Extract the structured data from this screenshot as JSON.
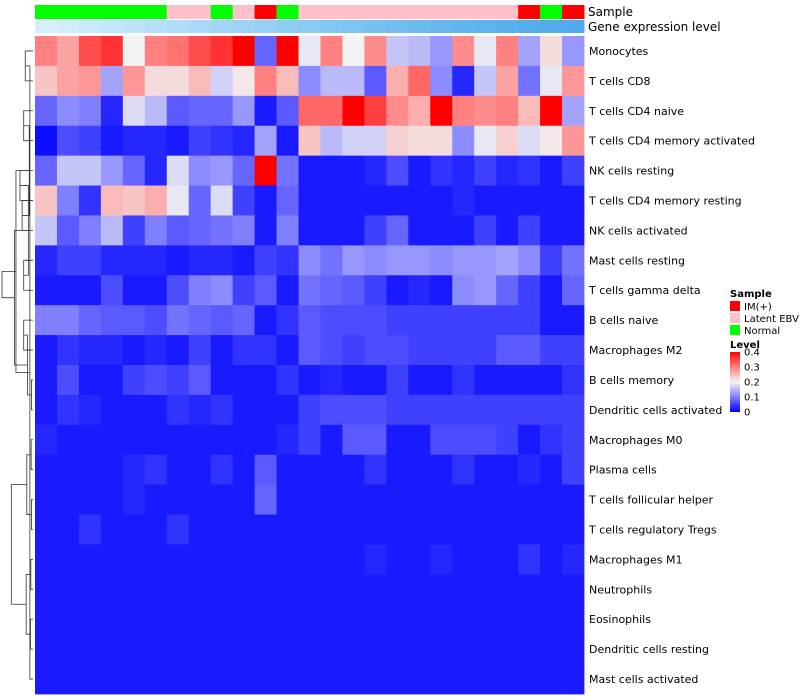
{
  "chart_data": {
    "type": "heatmap",
    "annotations": {
      "sample_track_label": "Sample",
      "expression_track_label": "Gene expression level",
      "sample": [
        "Normal",
        "Normal",
        "Normal",
        "Normal",
        "Normal",
        "Normal",
        "Latent EBV",
        "Latent EBV",
        "Normal",
        "Latent EBV",
        "IM(+)",
        "Normal",
        "Latent EBV",
        "Latent EBV",
        "Latent EBV",
        "Latent EBV",
        "Latent EBV",
        "Latent EBV",
        "Latent EBV",
        "Latent EBV",
        "Latent EBV",
        "Latent EBV",
        "IM(+)",
        "Normal",
        "IM(+)"
      ],
      "expression_gradient": [
        "#d6efff",
        "#d0ecfd",
        "#c9e9fc",
        "#c3e6fb",
        "#bde3fa",
        "#b6e0f9",
        "#b0ddf8",
        "#aad9f7",
        "#a3d6f6",
        "#9dd3f5",
        "#97d0f4",
        "#90cdf3",
        "#8acaf3",
        "#84c7f2",
        "#7dc4f1",
        "#77c1f0",
        "#71bef0",
        "#6bbbef",
        "#66b8ee",
        "#61b5ee",
        "#5cb3ed",
        "#58b0ed",
        "#55aeec",
        "#52acec",
        "#50abec"
      ]
    },
    "rows": [
      "Monocytes",
      "T cells CD8",
      "T cells CD4 naive",
      "T cells CD4 memory activated",
      "NK cells resting",
      "T cells CD4 memory resting",
      "NK cells activated",
      "Mast cells resting",
      "T cells gamma delta",
      "B cells naive",
      "Macrophages M2",
      "B cells memory",
      "Dendritic cells activated",
      "Macrophages M0",
      "Plasma cells",
      "T cells follicular helper",
      "T cells regulatory  Tregs",
      "Macrophages M1",
      "Neutrophils",
      "Eosinophils",
      "Dendritic cells resting",
      "Mast cells activated"
    ],
    "values": [
      [
        0.3,
        0.27,
        0.34,
        0.36,
        0.2,
        0.3,
        0.31,
        0.34,
        0.36,
        0.4,
        0.08,
        0.4,
        0.19,
        0.3,
        0.2,
        0.29,
        0.16,
        0.15,
        0.12,
        0.29,
        0.19,
        0.3,
        0.13,
        0.22,
        0.12
      ],
      [
        0.24,
        0.27,
        0.28,
        0.13,
        0.28,
        0.22,
        0.22,
        0.25,
        0.17,
        0.21,
        0.3,
        0.25,
        0.11,
        0.15,
        0.15,
        0.07,
        0.26,
        0.32,
        0.11,
        0.03,
        0.16,
        0.27,
        0.09,
        0.19,
        0.28
      ],
      [
        0.08,
        0.11,
        0.1,
        0.03,
        0.18,
        0.15,
        0.07,
        0.08,
        0.08,
        0.12,
        0.02,
        0.07,
        0.32,
        0.32,
        0.4,
        0.35,
        0.29,
        0.26,
        0.4,
        0.3,
        0.29,
        0.3,
        0.25,
        0.4,
        0.13
      ],
      [
        0.01,
        0.06,
        0.05,
        0.02,
        0.03,
        0.03,
        0.02,
        0.05,
        0.04,
        0.03,
        0.13,
        0.02,
        0.24,
        0.15,
        0.17,
        0.17,
        0.23,
        0.22,
        0.22,
        0.11,
        0.19,
        0.23,
        0.18,
        0.21,
        0.28
      ],
      [
        0.08,
        0.16,
        0.16,
        0.12,
        0.08,
        0.03,
        0.18,
        0.11,
        0.12,
        0.08,
        0.4,
        0.09,
        0.02,
        0.02,
        0.02,
        0.03,
        0.06,
        0.02,
        0.04,
        0.03,
        0.05,
        0.03,
        0.04,
        0.02,
        0.05
      ],
      [
        0.24,
        0.1,
        0.04,
        0.25,
        0.24,
        0.26,
        0.19,
        0.08,
        0.18,
        0.05,
        0.02,
        0.08,
        0.02,
        0.02,
        0.02,
        0.02,
        0.02,
        0.02,
        0.02,
        0.03,
        0.02,
        0.02,
        0.02,
        0.02,
        0.02
      ],
      [
        0.16,
        0.07,
        0.1,
        0.15,
        0.05,
        0.1,
        0.07,
        0.08,
        0.09,
        0.1,
        0.02,
        0.1,
        0.02,
        0.02,
        0.02,
        0.05,
        0.08,
        0.02,
        0.02,
        0.02,
        0.05,
        0.02,
        0.05,
        0.02,
        0.02
      ],
      [
        0.03,
        0.05,
        0.05,
        0.03,
        0.03,
        0.03,
        0.02,
        0.03,
        0.03,
        0.02,
        0.05,
        0.04,
        0.11,
        0.09,
        0.12,
        0.11,
        0.12,
        0.12,
        0.11,
        0.12,
        0.12,
        0.13,
        0.11,
        0.05,
        0.09
      ],
      [
        0.02,
        0.02,
        0.02,
        0.06,
        0.02,
        0.02,
        0.06,
        0.1,
        0.11,
        0.05,
        0.07,
        0.02,
        0.09,
        0.08,
        0.07,
        0.05,
        0.02,
        0.03,
        0.02,
        0.11,
        0.12,
        0.08,
        0.05,
        0.02,
        0.08
      ],
      [
        0.1,
        0.1,
        0.08,
        0.07,
        0.07,
        0.06,
        0.09,
        0.08,
        0.07,
        0.08,
        0.02,
        0.04,
        0.07,
        0.06,
        0.06,
        0.06,
        0.05,
        0.05,
        0.05,
        0.05,
        0.05,
        0.05,
        0.05,
        0.02,
        0.02
      ],
      [
        0.02,
        0.04,
        0.03,
        0.03,
        0.02,
        0.03,
        0.02,
        0.05,
        0.02,
        0.04,
        0.04,
        0.02,
        0.07,
        0.06,
        0.05,
        0.06,
        0.06,
        0.05,
        0.05,
        0.05,
        0.05,
        0.07,
        0.07,
        0.05,
        0.05
      ],
      [
        0.02,
        0.06,
        0.02,
        0.02,
        0.05,
        0.06,
        0.05,
        0.07,
        0.02,
        0.02,
        0.02,
        0.04,
        0.02,
        0.03,
        0.02,
        0.02,
        0.05,
        0.02,
        0.02,
        0.04,
        0.02,
        0.02,
        0.02,
        0.02,
        0.04
      ],
      [
        0.02,
        0.04,
        0.03,
        0.02,
        0.02,
        0.02,
        0.04,
        0.03,
        0.04,
        0.02,
        0.02,
        0.02,
        0.05,
        0.06,
        0.06,
        0.06,
        0.05,
        0.05,
        0.05,
        0.05,
        0.05,
        0.05,
        0.05,
        0.05,
        0.05
      ],
      [
        0.03,
        0.02,
        0.02,
        0.02,
        0.02,
        0.02,
        0.02,
        0.02,
        0.02,
        0.02,
        0.02,
        0.03,
        0.05,
        0.02,
        0.07,
        0.07,
        0.02,
        0.02,
        0.06,
        0.06,
        0.06,
        0.05,
        0.02,
        0.04,
        0.05
      ],
      [
        0.02,
        0.02,
        0.02,
        0.02,
        0.03,
        0.04,
        0.02,
        0.02,
        0.04,
        0.02,
        0.07,
        0.02,
        0.02,
        0.02,
        0.02,
        0.04,
        0.02,
        0.02,
        0.02,
        0.04,
        0.02,
        0.02,
        0.03,
        0.02,
        0.05
      ],
      [
        0.02,
        0.02,
        0.02,
        0.02,
        0.03,
        0.02,
        0.02,
        0.02,
        0.02,
        0.02,
        0.08,
        0.02,
        0.02,
        0.02,
        0.02,
        0.02,
        0.02,
        0.02,
        0.02,
        0.02,
        0.02,
        0.02,
        0.02,
        0.02,
        0.02
      ],
      [
        0.02,
        0.02,
        0.04,
        0.02,
        0.02,
        0.02,
        0.04,
        0.02,
        0.02,
        0.02,
        0.02,
        0.02,
        0.02,
        0.02,
        0.02,
        0.02,
        0.02,
        0.02,
        0.02,
        0.02,
        0.02,
        0.02,
        0.02,
        0.02,
        0.02
      ],
      [
        0.02,
        0.02,
        0.02,
        0.02,
        0.02,
        0.02,
        0.02,
        0.02,
        0.02,
        0.02,
        0.02,
        0.02,
        0.02,
        0.02,
        0.02,
        0.03,
        0.02,
        0.02,
        0.03,
        0.02,
        0.02,
        0.02,
        0.04,
        0.02,
        0.03
      ],
      [
        0.02,
        0.02,
        0.02,
        0.02,
        0.02,
        0.02,
        0.02,
        0.02,
        0.02,
        0.02,
        0.02,
        0.02,
        0.02,
        0.02,
        0.02,
        0.02,
        0.02,
        0.02,
        0.02,
        0.02,
        0.02,
        0.02,
        0.02,
        0.02,
        0.02
      ],
      [
        0.02,
        0.02,
        0.02,
        0.02,
        0.02,
        0.02,
        0.02,
        0.02,
        0.02,
        0.02,
        0.02,
        0.02,
        0.02,
        0.02,
        0.02,
        0.02,
        0.02,
        0.02,
        0.02,
        0.02,
        0.02,
        0.02,
        0.02,
        0.02,
        0.02
      ],
      [
        0.02,
        0.02,
        0.02,
        0.02,
        0.02,
        0.02,
        0.02,
        0.02,
        0.02,
        0.02,
        0.02,
        0.02,
        0.02,
        0.02,
        0.02,
        0.02,
        0.02,
        0.02,
        0.02,
        0.02,
        0.02,
        0.02,
        0.02,
        0.02,
        0.02
      ],
      [
        0.02,
        0.02,
        0.02,
        0.02,
        0.02,
        0.02,
        0.02,
        0.02,
        0.02,
        0.02,
        0.02,
        0.02,
        0.02,
        0.02,
        0.02,
        0.02,
        0.02,
        0.02,
        0.02,
        0.02,
        0.02,
        0.02,
        0.02,
        0.02,
        0.02
      ]
    ],
    "color_scale": {
      "domain": [
        0,
        0.1,
        0.2,
        0.3,
        0.4
      ],
      "colors": [
        "#0000ff",
        "#8080ff",
        "#f3f3f3",
        "#ff8080",
        "#ff0000"
      ]
    },
    "legend": {
      "placement": "right",
      "sample_title": "Sample",
      "sample_items": [
        {
          "label": "IM(+)",
          "color": "#ff0000"
        },
        {
          "label": "Latent EBV",
          "color": "#ffc0cb"
        },
        {
          "label": "Normal",
          "color": "#00ff00"
        }
      ],
      "level_title": "Level",
      "level_ticks": [
        "0.4",
        "0.3",
        "0.2",
        "0.1",
        "0"
      ]
    },
    "row_dendrogram": {
      "clusters": [
        [
          0,
          1
        ],
        [
          2,
          3
        ],
        [
          5,
          6
        ],
        [
          4,
          5
        ],
        [
          7,
          8
        ],
        [
          9,
          10
        ],
        [
          11,
          12
        ],
        [
          13,
          14
        ],
        [
          15,
          16
        ],
        [
          17,
          18
        ],
        [
          19,
          20
        ],
        [
          21,
          22
        ],
        [
          23,
          24
        ],
        [
          25,
          26
        ],
        [
          27,
          28
        ],
        [
          29,
          30
        ],
        [
          31,
          32
        ],
        [
          33,
          34
        ],
        [
          35,
          36
        ],
        [
          37,
          38
        ],
        [
          39,
          40
        ]
      ],
      "heights": [
        0.25,
        0.3,
        0.35,
        0.42,
        0.3,
        0.3,
        0.05,
        0.06,
        0.05,
        0.07,
        0.08,
        0.1,
        0.12,
        0.15,
        0.18,
        0.2,
        0.22,
        0.55,
        0.6,
        0.7,
        1.0
      ]
    }
  }
}
